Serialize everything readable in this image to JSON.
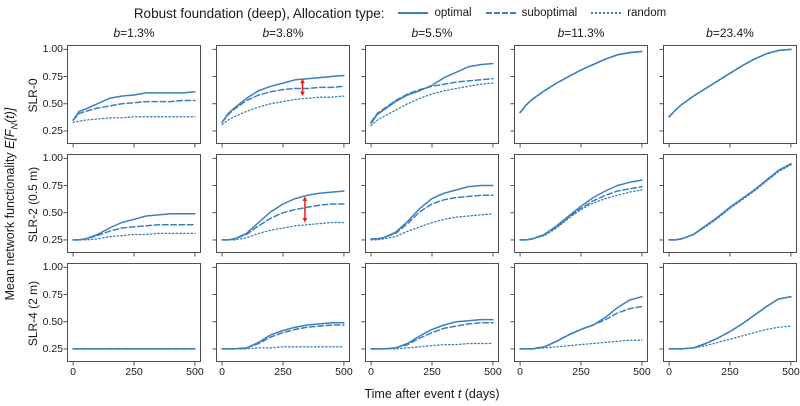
{
  "chart_data": {
    "type": "line",
    "title": "Robust foundation (deep),  Allocation type:",
    "legend": [
      {
        "label": "optimal",
        "style": "solid"
      },
      {
        "label": "suboptimal",
        "style": "dashed"
      },
      {
        "label": "random",
        "style": "dotted"
      }
    ],
    "col_headers": [
      "b=1.3%",
      "b=3.8%",
      "b=5.5%",
      "b=11.3%",
      "b=23.4%"
    ],
    "row_labels": [
      "SLR-0",
      "SLR-2 (0.5 m)",
      "SLR-4 (2 m)"
    ],
    "ylabel_parts": {
      "prefix": "Mean network functionality ",
      "math_a": "E[F",
      "sub": "N",
      "math_b": "(t)]"
    },
    "xlabel_parts": [
      "Time after event ",
      "t",
      " (days)"
    ],
    "colors": {
      "line": "#3d7ebf",
      "annotation_arrow": "#e02121",
      "axis": "#3c3c3c"
    },
    "x": [
      0,
      25,
      50,
      100,
      150,
      200,
      250,
      300,
      350,
      400,
      450,
      500
    ],
    "xlim": [
      -25,
      525
    ],
    "ylim": [
      0.13,
      1.04
    ],
    "xticks": {
      "values": [
        0,
        250,
        500
      ],
      "labels": [
        "0",
        "250",
        "500"
      ]
    },
    "yticks": {
      "values": [
        1.0,
        0.75,
        0.5,
        0.25
      ],
      "labels": [
        "1.00",
        "0.75",
        "0.50",
        "0.25"
      ]
    },
    "grid": false,
    "panels": [
      {
        "row": "SLR-0",
        "col": "b=1.3%",
        "optimal": [
          0.35,
          0.43,
          0.45,
          0.5,
          0.55,
          0.57,
          0.58,
          0.6,
          0.6,
          0.6,
          0.6,
          0.61
        ],
        "suboptimal": [
          0.35,
          0.41,
          0.43,
          0.46,
          0.48,
          0.5,
          0.51,
          0.52,
          0.52,
          0.52,
          0.53,
          0.53
        ],
        "random": [
          0.33,
          0.34,
          0.35,
          0.36,
          0.37,
          0.37,
          0.38,
          0.38,
          0.38,
          0.38,
          0.38,
          0.38
        ]
      },
      {
        "row": "SLR-0",
        "col": "b=3.8%",
        "optimal": [
          0.33,
          0.41,
          0.46,
          0.55,
          0.62,
          0.66,
          0.69,
          0.72,
          0.73,
          0.74,
          0.75,
          0.76
        ],
        "suboptimal": [
          0.33,
          0.4,
          0.45,
          0.53,
          0.58,
          0.61,
          0.63,
          0.64,
          0.64,
          0.65,
          0.65,
          0.66
        ],
        "random": [
          0.31,
          0.35,
          0.38,
          0.43,
          0.47,
          0.5,
          0.52,
          0.54,
          0.55,
          0.56,
          0.56,
          0.57
        ]
      },
      {
        "row": "SLR-0",
        "col": "b=5.5%",
        "optimal": [
          0.32,
          0.4,
          0.44,
          0.52,
          0.58,
          0.62,
          0.67,
          0.74,
          0.79,
          0.84,
          0.86,
          0.87
        ],
        "suboptimal": [
          0.33,
          0.41,
          0.45,
          0.53,
          0.59,
          0.63,
          0.66,
          0.68,
          0.7,
          0.71,
          0.72,
          0.73
        ],
        "random": [
          0.3,
          0.35,
          0.38,
          0.44,
          0.5,
          0.55,
          0.59,
          0.62,
          0.64,
          0.66,
          0.68,
          0.69
        ]
      },
      {
        "row": "SLR-0",
        "col": "b=11.3%",
        "optimal": [
          0.42,
          0.49,
          0.54,
          0.62,
          0.69,
          0.75,
          0.81,
          0.86,
          0.91,
          0.95,
          0.97,
          0.98
        ],
        "suboptimal": [
          0.42,
          0.49,
          0.54,
          0.62,
          0.69,
          0.75,
          0.81,
          0.86,
          0.91,
          0.95,
          0.97,
          0.98
        ],
        "random": [
          0.42,
          0.49,
          0.54,
          0.62,
          0.69,
          0.75,
          0.81,
          0.86,
          0.91,
          0.95,
          0.97,
          0.98
        ]
      },
      {
        "row": "SLR-0",
        "col": "b=23.4%",
        "optimal": [
          0.38,
          0.44,
          0.49,
          0.57,
          0.64,
          0.71,
          0.78,
          0.85,
          0.91,
          0.96,
          0.99,
          1.0
        ],
        "suboptimal": [
          0.38,
          0.44,
          0.49,
          0.57,
          0.64,
          0.71,
          0.78,
          0.85,
          0.91,
          0.96,
          0.99,
          1.0
        ],
        "random": [
          0.38,
          0.44,
          0.49,
          0.57,
          0.64,
          0.71,
          0.78,
          0.85,
          0.91,
          0.96,
          0.99,
          1.0
        ]
      },
      {
        "row": "SLR-2 (0.5 m)",
        "col": "b=1.3%",
        "optimal": [
          0.25,
          0.25,
          0.26,
          0.3,
          0.36,
          0.41,
          0.44,
          0.47,
          0.48,
          0.49,
          0.49,
          0.49
        ],
        "suboptimal": [
          0.25,
          0.25,
          0.26,
          0.29,
          0.33,
          0.36,
          0.37,
          0.38,
          0.39,
          0.39,
          0.39,
          0.39
        ],
        "random": [
          0.25,
          0.25,
          0.25,
          0.26,
          0.28,
          0.29,
          0.3,
          0.3,
          0.31,
          0.31,
          0.31,
          0.31
        ]
      },
      {
        "row": "SLR-2 (0.5 m)",
        "col": "b=3.8%",
        "optimal": [
          0.25,
          0.25,
          0.26,
          0.31,
          0.41,
          0.51,
          0.58,
          0.63,
          0.66,
          0.68,
          0.69,
          0.7
        ],
        "suboptimal": [
          0.25,
          0.25,
          0.26,
          0.3,
          0.38,
          0.45,
          0.5,
          0.53,
          0.55,
          0.57,
          0.58,
          0.58
        ],
        "random": [
          0.25,
          0.25,
          0.25,
          0.27,
          0.31,
          0.34,
          0.36,
          0.38,
          0.39,
          0.4,
          0.41,
          0.41
        ]
      },
      {
        "row": "SLR-2 (0.5 m)",
        "col": "b=5.5%",
        "optimal": [
          0.26,
          0.26,
          0.27,
          0.32,
          0.42,
          0.54,
          0.63,
          0.68,
          0.71,
          0.74,
          0.75,
          0.75
        ],
        "suboptimal": [
          0.26,
          0.26,
          0.27,
          0.31,
          0.4,
          0.51,
          0.58,
          0.62,
          0.64,
          0.65,
          0.66,
          0.66
        ],
        "random": [
          0.25,
          0.25,
          0.26,
          0.28,
          0.33,
          0.37,
          0.41,
          0.44,
          0.46,
          0.47,
          0.48,
          0.49
        ]
      },
      {
        "row": "SLR-2 (0.5 m)",
        "col": "b=11.3%",
        "optimal": [
          0.25,
          0.25,
          0.26,
          0.3,
          0.38,
          0.47,
          0.56,
          0.64,
          0.7,
          0.75,
          0.78,
          0.8
        ],
        "suboptimal": [
          0.25,
          0.25,
          0.26,
          0.3,
          0.37,
          0.46,
          0.54,
          0.61,
          0.66,
          0.7,
          0.72,
          0.74
        ],
        "random": [
          0.25,
          0.25,
          0.26,
          0.29,
          0.36,
          0.45,
          0.53,
          0.59,
          0.63,
          0.66,
          0.69,
          0.71
        ]
      },
      {
        "row": "SLR-2 (0.5 m)",
        "col": "b=23.4%",
        "optimal": [
          0.25,
          0.25,
          0.26,
          0.3,
          0.38,
          0.46,
          0.55,
          0.63,
          0.71,
          0.8,
          0.89,
          0.95
        ],
        "suboptimal": [
          0.25,
          0.25,
          0.26,
          0.3,
          0.38,
          0.46,
          0.55,
          0.63,
          0.71,
          0.8,
          0.89,
          0.95
        ],
        "random": [
          0.25,
          0.25,
          0.26,
          0.3,
          0.37,
          0.45,
          0.54,
          0.62,
          0.7,
          0.79,
          0.88,
          0.94
        ]
      },
      {
        "row": "SLR-4 (2 m)",
        "col": "b=1.3%",
        "optimal": [
          0.25,
          0.25,
          0.25,
          0.25,
          0.25,
          0.25,
          0.25,
          0.25,
          0.25,
          0.25,
          0.25,
          0.25
        ],
        "suboptimal": [
          0.25,
          0.25,
          0.25,
          0.25,
          0.25,
          0.25,
          0.25,
          0.25,
          0.25,
          0.25,
          0.25,
          0.25
        ],
        "random": [
          0.25,
          0.25,
          0.25,
          0.25,
          0.25,
          0.25,
          0.25,
          0.25,
          0.25,
          0.25,
          0.25,
          0.25
        ]
      },
      {
        "row": "SLR-4 (2 m)",
        "col": "b=3.8%",
        "optimal": [
          0.25,
          0.25,
          0.25,
          0.26,
          0.31,
          0.38,
          0.42,
          0.45,
          0.47,
          0.48,
          0.49,
          0.49
        ],
        "suboptimal": [
          0.25,
          0.25,
          0.25,
          0.26,
          0.3,
          0.36,
          0.4,
          0.43,
          0.45,
          0.46,
          0.47,
          0.47
        ],
        "random": [
          0.25,
          0.25,
          0.25,
          0.25,
          0.26,
          0.26,
          0.27,
          0.27,
          0.27,
          0.27,
          0.27,
          0.27
        ]
      },
      {
        "row": "SLR-4 (2 m)",
        "col": "b=5.5%",
        "optimal": [
          0.25,
          0.25,
          0.25,
          0.26,
          0.3,
          0.37,
          0.43,
          0.47,
          0.5,
          0.51,
          0.52,
          0.52
        ],
        "suboptimal": [
          0.25,
          0.25,
          0.25,
          0.26,
          0.29,
          0.35,
          0.4,
          0.44,
          0.46,
          0.48,
          0.49,
          0.49
        ],
        "random": [
          0.25,
          0.25,
          0.25,
          0.25,
          0.26,
          0.27,
          0.28,
          0.29,
          0.29,
          0.3,
          0.3,
          0.3
        ]
      },
      {
        "row": "SLR-4 (2 m)",
        "col": "b=11.3%",
        "optimal": [
          0.25,
          0.25,
          0.25,
          0.27,
          0.32,
          0.38,
          0.43,
          0.47,
          0.54,
          0.63,
          0.7,
          0.73
        ],
        "suboptimal": [
          0.25,
          0.25,
          0.25,
          0.27,
          0.32,
          0.38,
          0.43,
          0.47,
          0.52,
          0.58,
          0.62,
          0.64
        ],
        "random": [
          0.25,
          0.25,
          0.25,
          0.26,
          0.27,
          0.28,
          0.29,
          0.3,
          0.31,
          0.32,
          0.33,
          0.33
        ]
      },
      {
        "row": "SLR-4 (2 m)",
        "col": "b=23.4%",
        "optimal": [
          0.25,
          0.25,
          0.25,
          0.26,
          0.3,
          0.35,
          0.41,
          0.48,
          0.56,
          0.64,
          0.71,
          0.73
        ],
        "suboptimal": [
          0.25,
          0.25,
          0.25,
          0.26,
          0.3,
          0.35,
          0.41,
          0.48,
          0.56,
          0.64,
          0.71,
          0.73
        ],
        "random": [
          0.25,
          0.25,
          0.25,
          0.26,
          0.28,
          0.31,
          0.34,
          0.37,
          0.4,
          0.43,
          0.45,
          0.46
        ]
      }
    ],
    "annotations": [
      {
        "panel": 1,
        "type": "double-arrow",
        "x": 330,
        "y_from": 0.57,
        "y_to": 0.73
      },
      {
        "panel": 6,
        "type": "double-arrow",
        "x": 340,
        "y_from": 0.41,
        "y_to": 0.65
      }
    ]
  }
}
